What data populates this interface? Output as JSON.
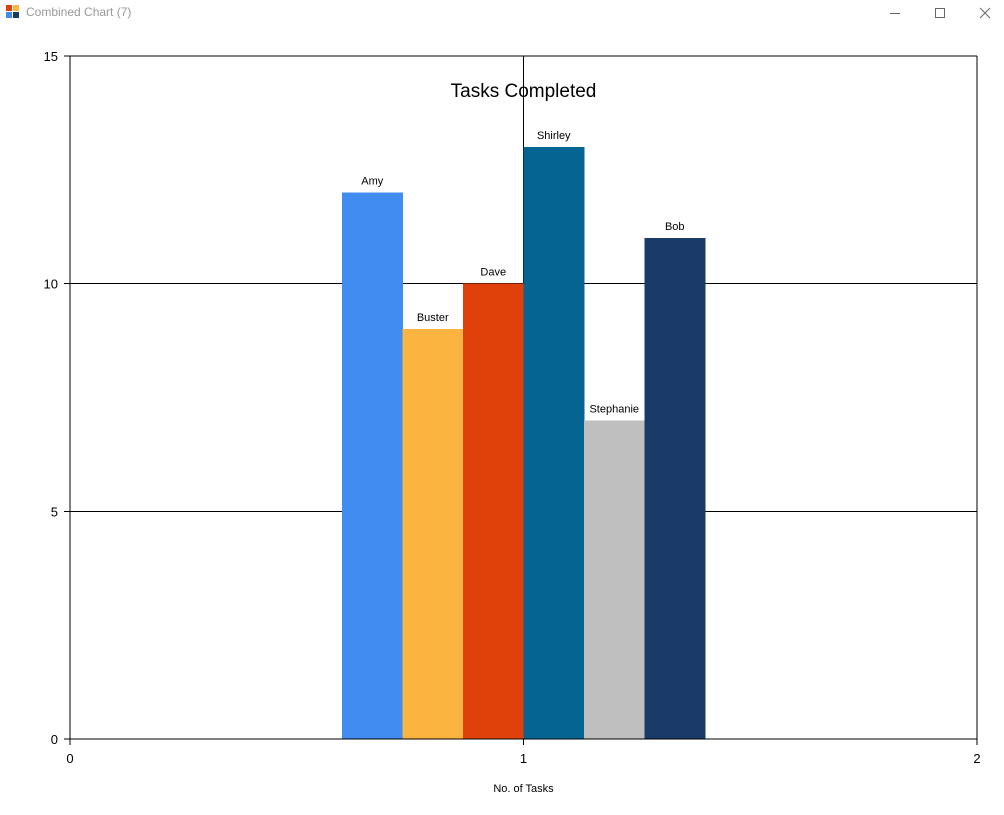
{
  "window": {
    "title": "Combined Chart (7)",
    "icon": "chart-app-icon",
    "controls": [
      "minimize-icon",
      "maximize-icon",
      "close-icon"
    ]
  },
  "chart_data": {
    "type": "bar",
    "title": "Tasks Completed",
    "xlabel": "No. of Tasks",
    "ylabel": "",
    "xlim": [
      0,
      2
    ],
    "ylim": [
      0,
      15
    ],
    "x_ticks": [
      0,
      1,
      2
    ],
    "y_ticks": [
      0,
      5,
      10,
      15
    ],
    "grid": true,
    "x_center": 1,
    "series": [
      {
        "name": "Amy",
        "value": 12,
        "color": "#418CF0"
      },
      {
        "name": "Buster",
        "value": 9,
        "color": "#FCB441"
      },
      {
        "name": "Dave",
        "value": 10,
        "color": "#E0400A"
      },
      {
        "name": "Shirley",
        "value": 13,
        "color": "#056492"
      },
      {
        "name": "Stephanie",
        "value": 7,
        "color": "#BFBFBF"
      },
      {
        "name": "Bob",
        "value": 11,
        "color": "#1A3B69"
      }
    ]
  }
}
